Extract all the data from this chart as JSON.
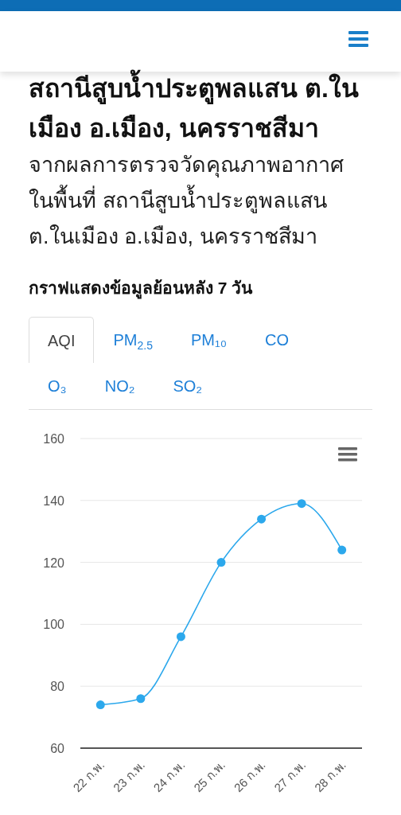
{
  "chart_data": {
    "type": "line",
    "title": "สถานีสูบน้ำประตูพลแสน ต.ในเมือง อ.เมือง, นครราชสีมา",
    "subtitle": "จากผลการตรวจวัดคุณภาพอากาศในพื้นที่ สถานีสูบน้ำประตูพลแสน ต.ในเมือง อ.เมือง, นครราชสีมา",
    "annotations": [
      "กราฟแสดงข้อมูลย้อนหลัง 7 วัน",
      "AQI",
      "PM$_{2.5}$",
      "PM₁₀",
      "CO",
      "O₃",
      "NO₂",
      "SO₂"
    ],
    "categories": [
      "22 ก.พ.",
      "23 ก.พ.",
      "24 ก.พ.",
      "25 ก.พ.",
      "26 ก.พ.",
      "27 ก.พ.",
      "28 ก.พ."
    ],
    "series": [
      {
        "color": "#2ca8ec",
        "values": [
          74,
          76,
          96,
          120,
          134,
          139,
          124
        ]
      }
    ],
    "ylim": [
      60,
      160
    ],
    "yticks": [
      60,
      80,
      100,
      120,
      140,
      160
    ],
    "grid": "y",
    "marker": "circle",
    "line_style": "solid"
  }
}
